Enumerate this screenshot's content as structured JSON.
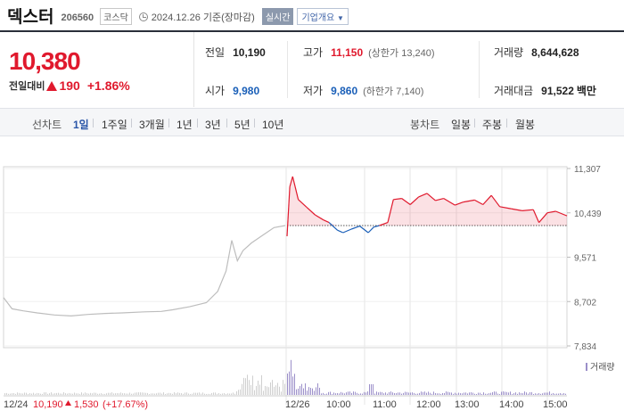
{
  "stock": {
    "name": "덱스터",
    "code": "206560",
    "market": "코스닥",
    "as_of": "2024.12.26  기준(장마감)",
    "realtime_label": "실시간",
    "company_info_label": "기업개요"
  },
  "price": {
    "current": "10,380",
    "change_label": "전일대비",
    "change": "190",
    "change_pct": "+1.86%"
  },
  "stats": {
    "prev_close": {
      "label": "전일",
      "value": "10,190"
    },
    "high": {
      "label": "고가",
      "value": "11,150",
      "sub": "(상한가 13,240)"
    },
    "volume": {
      "label": "거래량",
      "value": "8,644,628"
    },
    "open": {
      "label": "시가",
      "value": "9,980"
    },
    "low": {
      "label": "저가",
      "value": "9,860",
      "sub": "(하한가 7,140)"
    },
    "trade_value": {
      "label": "거래대금",
      "value": "91,522",
      "unit": "백만"
    }
  },
  "period_bar": {
    "line_chart_label": "선차트",
    "periods": [
      "1일",
      "1주일",
      "3개월",
      "1년",
      "3년",
      "5년",
      "10년"
    ],
    "active_period": "1일",
    "candle_chart_label": "봉차트",
    "candles": [
      "일봉",
      "주봉",
      "월봉"
    ]
  },
  "chart_data": {
    "type": "line",
    "y_ticks": [
      "11,307",
      "10,439",
      "9,571",
      "8,702",
      "7,834"
    ],
    "ylim": [
      7834,
      11307
    ],
    "prev_close": 10190,
    "prev_day_series": [
      [
        0,
        8780
      ],
      [
        0.03,
        8560
      ],
      [
        0.07,
        8520
      ],
      [
        0.12,
        8480
      ],
      [
        0.18,
        8440
      ],
      [
        0.24,
        8420
      ],
      [
        0.3,
        8450
      ],
      [
        0.36,
        8470
      ],
      [
        0.42,
        8480
      ],
      [
        0.5,
        8500
      ],
      [
        0.56,
        8510
      ],
      [
        0.6,
        8540
      ],
      [
        0.66,
        8600
      ],
      [
        0.72,
        8680
      ],
      [
        0.76,
        8900
      ],
      [
        0.79,
        9300
      ],
      [
        0.81,
        9900
      ],
      [
        0.83,
        9500
      ],
      [
        0.85,
        9700
      ],
      [
        0.88,
        9850
      ],
      [
        0.92,
        10000
      ],
      [
        0.96,
        10150
      ],
      [
        1.0,
        10190
      ]
    ],
    "today_series": [
      [
        0,
        9980
      ],
      [
        0.01,
        10950
      ],
      [
        0.02,
        11150
      ],
      [
        0.04,
        10700
      ],
      [
        0.07,
        10550
      ],
      [
        0.1,
        10400
      ],
      [
        0.13,
        10300
      ],
      [
        0.15,
        10250
      ],
      [
        0.18,
        10100
      ],
      [
        0.2,
        10050
      ],
      [
        0.23,
        10120
      ],
      [
        0.26,
        10180
      ],
      [
        0.29,
        10050
      ],
      [
        0.31,
        10160
      ],
      [
        0.33,
        10190
      ],
      [
        0.36,
        10250
      ],
      [
        0.38,
        10700
      ],
      [
        0.41,
        10720
      ],
      [
        0.44,
        10600
      ],
      [
        0.47,
        10750
      ],
      [
        0.5,
        10820
      ],
      [
        0.53,
        10680
      ],
      [
        0.56,
        10720
      ],
      [
        0.6,
        10590
      ],
      [
        0.63,
        10650
      ],
      [
        0.67,
        10690
      ],
      [
        0.7,
        10600
      ],
      [
        0.73,
        10780
      ],
      [
        0.76,
        10560
      ],
      [
        0.8,
        10520
      ],
      [
        0.84,
        10480
      ],
      [
        0.88,
        10500
      ],
      [
        0.9,
        10250
      ],
      [
        0.93,
        10440
      ],
      [
        0.96,
        10470
      ],
      [
        1.0,
        10380
      ]
    ],
    "volume_legend": "거래량",
    "x_ticks": [
      "12/24",
      "12/26",
      "10:00",
      "11:00",
      "12:00",
      "13:00",
      "14:00",
      "15:00"
    ],
    "prev_day_summary": {
      "price": "10,190",
      "change": "1,530",
      "change_pct": "(+17.67%)"
    },
    "colors": {
      "up": "#e0192d",
      "down": "#1a5fb8",
      "prev_line": "#bdbdbd",
      "volume_prev": "#cfcfcf",
      "volume_today": "#9b8fc9"
    }
  }
}
